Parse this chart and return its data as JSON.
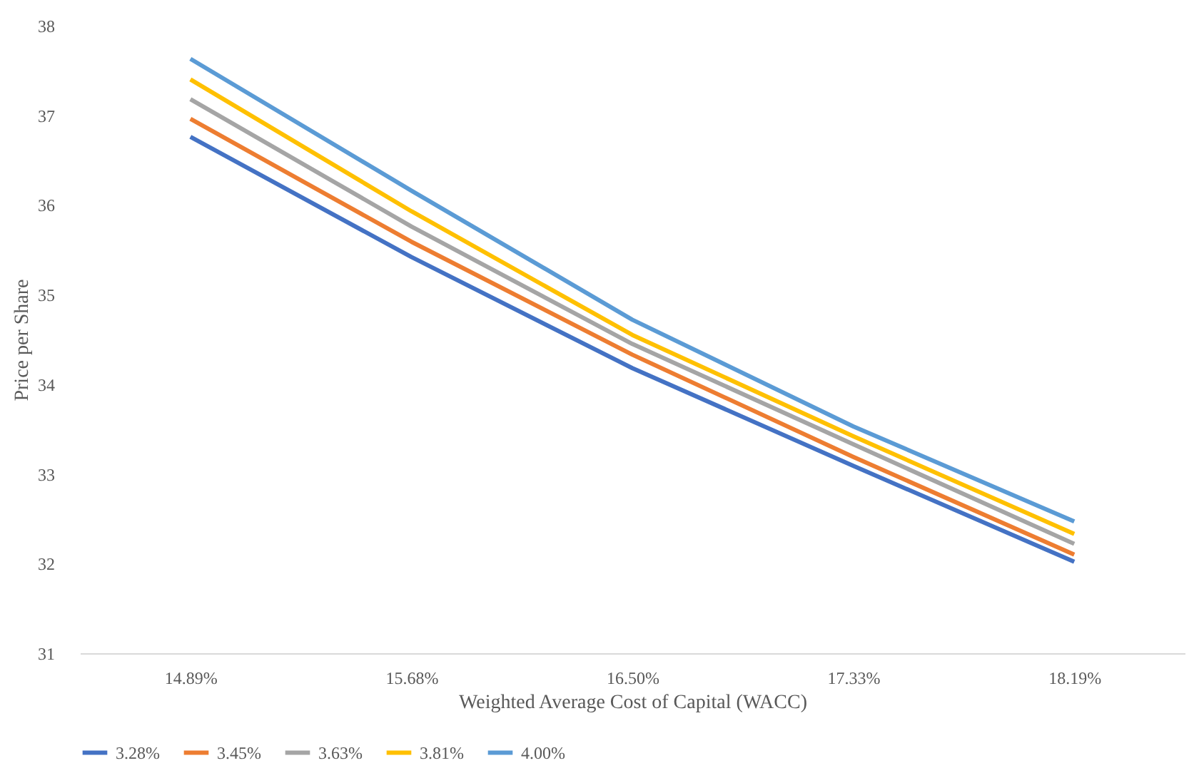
{
  "chart_data": {
    "type": "line",
    "xlabel": "Weighted Average Cost of Capital (WACC)",
    "ylabel": "Price per Share",
    "categories": [
      "14.89%",
      "15.68%",
      "16.50%",
      "17.33%",
      "18.19%"
    ],
    "ylim": [
      31,
      38
    ],
    "yticks": [
      31,
      32,
      33,
      34,
      35,
      36,
      37,
      38
    ],
    "grid": false,
    "legend": "bottom",
    "marker": "none",
    "line_style": "solid",
    "series": [
      {
        "name": "3.28%",
        "color": "#4472c4",
        "values": [
          36.76,
          35.42,
          34.18,
          33.09,
          32.02
        ]
      },
      {
        "name": "3.45%",
        "color": "#ed7d31",
        "values": [
          36.96,
          35.59,
          34.33,
          33.19,
          32.1
        ]
      },
      {
        "name": "3.63%",
        "color": "#a5a5a5",
        "values": [
          37.18,
          35.76,
          34.45,
          33.33,
          32.22
        ]
      },
      {
        "name": "3.81%",
        "color": "#ffc000",
        "values": [
          37.4,
          35.93,
          34.55,
          33.42,
          32.33
        ]
      },
      {
        "name": "4.00%",
        "color": "#5b9bd5",
        "values": [
          37.63,
          36.16,
          34.72,
          33.53,
          32.47
        ]
      }
    ]
  }
}
